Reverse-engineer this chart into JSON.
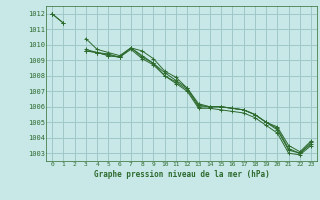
{
  "background_color": "#c8e8e8",
  "grid_color": "#a0c8c8",
  "line_color": "#2d6a2d",
  "title": "Graphe pression niveau de la mer (hPa)",
  "xlim": [
    -0.5,
    23.5
  ],
  "ylim": [
    1002.5,
    1012.5
  ],
  "yticks": [
    1003,
    1004,
    1005,
    1006,
    1007,
    1008,
    1009,
    1010,
    1011,
    1012
  ],
  "xticks": [
    0,
    1,
    2,
    3,
    4,
    5,
    6,
    7,
    8,
    9,
    10,
    11,
    12,
    13,
    14,
    15,
    16,
    17,
    18,
    19,
    20,
    21,
    22,
    23
  ],
  "series": [
    [
      1012.0,
      1011.4,
      null,
      1010.4,
      1009.7,
      1009.5,
      1009.3,
      1009.8,
      1009.3,
      1008.8,
      1008.0,
      1007.6,
      1007.1,
      1006.0,
      1006.0,
      1006.0,
      1005.9,
      1005.8,
      1005.5,
      1005.0,
      1004.5,
      1003.2,
      1003.0,
      1003.6
    ],
    [
      1012.0,
      1011.4,
      null,
      1009.7,
      1009.5,
      1009.4,
      1009.2,
      1009.7,
      1009.1,
      1008.7,
      1008.0,
      1007.5,
      1007.0,
      1005.9,
      1005.9,
      1005.8,
      1005.7,
      1005.6,
      1005.3,
      1004.8,
      1004.3,
      1003.0,
      1002.9,
      1003.5
    ],
    [
      1012.0,
      null,
      null,
      1009.6,
      1009.5,
      1009.3,
      1009.2,
      1009.8,
      1009.2,
      1008.8,
      1008.2,
      1007.7,
      1007.2,
      1006.1,
      1006.0,
      1006.0,
      1005.9,
      1005.8,
      1005.5,
      1005.0,
      1004.6,
      1003.3,
      1003.0,
      1003.7
    ],
    [
      1012.0,
      null,
      null,
      1009.6,
      1009.5,
      1009.3,
      1009.2,
      1009.8,
      1009.6,
      1009.1,
      1008.3,
      1007.9,
      1007.2,
      1006.2,
      1006.0,
      1006.0,
      1005.9,
      1005.8,
      1005.5,
      1005.0,
      1004.7,
      1003.5,
      1003.1,
      1003.8
    ]
  ]
}
